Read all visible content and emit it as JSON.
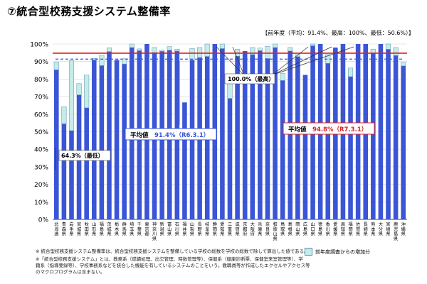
{
  "title": "⑦統合型校務支援システム整備率",
  "prev_year_note": "【前年度（平均：91.4%、最高：100%、最低：50.6%）】",
  "footnotes": [
    "※ 統合型校務支援システム整備率は、統合型校務支援システムを整備している学校の総数を学校の総数で除して算出した値である。",
    "※「統合型校務支援システム」とは、教務系（成績処理、出欠管理、時数管理等）、保健系（健康診断票、保健室来室管理等）、学",
    "籍系（指導要録等）、学校事務系などを統合した機能を有しているシステムのことをいう。教職員等が作成したエクセルやアクセス等",
    "のマクロプログラムは含まない。"
  ],
  "legend_label": "前年度調査からの増加分",
  "colors": {
    "current": "#3a55d6",
    "increase": "#c5ece9",
    "increase_border": "#5a8fb5",
    "avg_now": "#dd2222",
    "avg_prev": "#3a55d6"
  },
  "chart_data": {
    "type": "bar",
    "title": "⑦統合型校務支援システム整備率",
    "ylim": [
      0,
      100
    ],
    "yticks": [
      "0%",
      "10%",
      "20%",
      "30%",
      "40%",
      "50%",
      "60%",
      "70%",
      "80%",
      "90%",
      "100%"
    ],
    "categories": [
      "北海道",
      "青森県",
      "岩手県",
      "宮城県",
      "秋田県",
      "山形県",
      "福島県",
      "茨城県",
      "栃木県",
      "群馬県",
      "埼玉県",
      "千葉県",
      "東京都",
      "神奈川県",
      "新潟県",
      "富山県",
      "石川県",
      "福井県",
      "山梨県",
      "長野県",
      "岐阜県",
      "静岡県",
      "愛知県",
      "三重県",
      "滋賀県",
      "京都府",
      "大阪府",
      "兵庫県",
      "奈良県",
      "和歌山県",
      "鳥取県",
      "島根県",
      "岡山県",
      "広島県",
      "山口県",
      "徳島県",
      "香川県",
      "愛媛県",
      "高知県",
      "福岡県",
      "佐賀県",
      "長崎県",
      "熊本県",
      "大分県",
      "宮崎県",
      "鹿児島県",
      "沖縄県"
    ],
    "series": [
      {
        "name": "前年度",
        "values": [
          85.3,
          54.5,
          50.6,
          71.0,
          63.6,
          90.9,
          87.7,
          95.7,
          90.9,
          88.6,
          98.0,
          96.2,
          100,
          95.2,
          95.8,
          96.5,
          96.0,
          66.7,
          90.9,
          92.3,
          92.9,
          100,
          97.4,
          69.0,
          93.0,
          96.0,
          94.0,
          96.2,
          91.7,
          98.0,
          79.2,
          96.0,
          92.8,
          82.4,
          99.0,
          100,
          89.0,
          98.0,
          100,
          81.4,
          100,
          100,
          95.0,
          100,
          97.0,
          93.5,
          87.5
        ]
      },
      {
        "name": "前年度調査からの増加分",
        "values": [
          4.3,
          9.8,
          40.0,
          6.4,
          18.7,
          0.9,
          6.0,
          2.2,
          0.0,
          3.0,
          2.0,
          1.0,
          0.0,
          2.8,
          0.8,
          2.0,
          1.0,
          0.0,
          6.5,
          5.7,
          7.1,
          0.0,
          2.6,
          11.0,
          4.0,
          0.0,
          4.0,
          1.5,
          7.0,
          2.0,
          4.0,
          2.0,
          1.2,
          0.0,
          1.0,
          0.0,
          5.0,
          0.0,
          0.0,
          4.9,
          0.0,
          0.0,
          2.0,
          0.0,
          3.0,
          4.5,
          2.0
        ]
      }
    ],
    "average_now": {
      "label": "平均値",
      "value": 94.8,
      "value_text": "94.8%（R7.3.1）"
    },
    "average_prev": {
      "label": "平均値",
      "value": 91.4,
      "value_text": "91.4%（R6.3.1）"
    },
    "annotations": [
      {
        "text": "64.3%（最低）"
      },
      {
        "text": "100.0%（最高）"
      }
    ]
  }
}
